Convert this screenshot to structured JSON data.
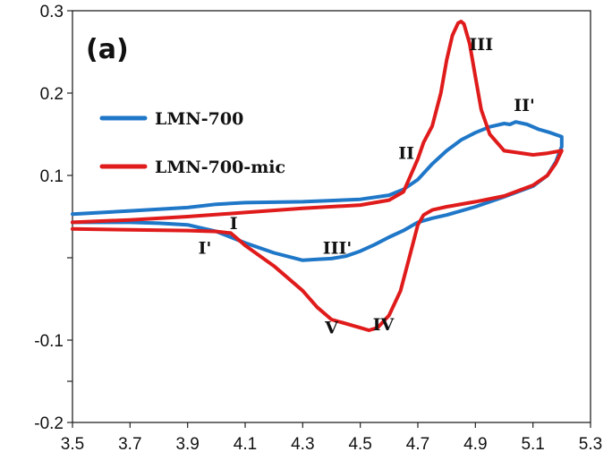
{
  "chart_data": {
    "type": "line",
    "panel_label": "(a)",
    "xlim": [
      3.5,
      5.3
    ],
    "ylim": [
      -0.2,
      0.3
    ],
    "x_ticks": [
      "3.5",
      "3.7",
      "3.9",
      "4.1",
      "4.3",
      "4.5",
      "4.7",
      "4.9",
      "5.1",
      "5.3"
    ],
    "y_ticks": [
      "-0.2",
      "",
      "-0.1",
      "",
      "0.1",
      "0.2",
      "0.3"
    ],
    "y_tick_values": [
      -0.2,
      -0.15,
      -0.1,
      0.0,
      0.1,
      0.2,
      0.3
    ],
    "grid": false,
    "legend_position": "upper-left",
    "colors": {
      "LMN-700": "#1f77c8",
      "LMN-700-mic": "#e01b1b"
    },
    "series": [
      {
        "name": "LMN-700",
        "color": "#1f77c8",
        "x": [
          3.5,
          3.7,
          3.9,
          4.0,
          4.1,
          4.3,
          4.5,
          4.6,
          4.65,
          4.7,
          4.75,
          4.8,
          4.85,
          4.9,
          4.95,
          5.0,
          5.02,
          5.04,
          5.08,
          5.12,
          5.16,
          5.2,
          5.2,
          5.18,
          5.15,
          5.1,
          5.0,
          4.9,
          4.8,
          4.75,
          4.7,
          4.65,
          4.6,
          4.55,
          4.5,
          4.45,
          4.4,
          4.35,
          4.3,
          4.2,
          4.1,
          4.0,
          3.95,
          3.9,
          3.8,
          3.7,
          3.6,
          3.5
        ],
        "y": [
          0.053,
          0.057,
          0.061,
          0.065,
          0.067,
          0.068,
          0.071,
          0.076,
          0.083,
          0.095,
          0.114,
          0.13,
          0.143,
          0.152,
          0.159,
          0.163,
          0.162,
          0.165,
          0.162,
          0.156,
          0.152,
          0.147,
          0.135,
          0.117,
          0.1,
          0.087,
          0.074,
          0.062,
          0.052,
          0.048,
          0.043,
          0.033,
          0.025,
          0.016,
          0.008,
          0.002,
          -0.001,
          -0.002,
          -0.003,
          0.006,
          0.018,
          0.032,
          0.036,
          0.04,
          0.042,
          0.043,
          0.043,
          0.043
        ]
      },
      {
        "name": "LMN-700-mic",
        "color": "#e01b1b",
        "x": [
          3.5,
          3.7,
          3.9,
          4.1,
          4.3,
          4.5,
          4.6,
          4.65,
          4.7,
          4.72,
          4.75,
          4.78,
          4.8,
          4.82,
          4.84,
          4.85,
          4.86,
          4.88,
          4.9,
          4.92,
          4.95,
          5.0,
          5.1,
          5.15,
          5.2,
          5.2,
          5.18,
          5.15,
          5.1,
          5.0,
          4.9,
          4.8,
          4.75,
          4.72,
          4.7,
          4.67,
          4.64,
          4.6,
          4.56,
          4.53,
          4.5,
          4.45,
          4.4,
          4.35,
          4.3,
          4.2,
          4.1,
          4.05,
          4.0,
          3.9,
          3.7,
          3.5
        ],
        "y": [
          0.043,
          0.046,
          0.05,
          0.055,
          0.06,
          0.064,
          0.07,
          0.08,
          0.12,
          0.14,
          0.16,
          0.2,
          0.24,
          0.27,
          0.285,
          0.287,
          0.284,
          0.26,
          0.22,
          0.18,
          0.15,
          0.13,
          0.125,
          0.127,
          0.13,
          0.13,
          0.115,
          0.1,
          0.088,
          0.075,
          0.068,
          0.062,
          0.058,
          0.052,
          0.04,
          0.0,
          -0.04,
          -0.07,
          -0.085,
          -0.088,
          -0.085,
          -0.08,
          -0.075,
          -0.06,
          -0.04,
          -0.01,
          0.015,
          0.03,
          0.032,
          0.033,
          0.034,
          0.035
        ]
      }
    ],
    "annotations": [
      {
        "text": "I",
        "x": 4.06,
        "y": 0.035
      },
      {
        "text": "I'",
        "x": 3.96,
        "y": 0.005
      },
      {
        "text": "II",
        "x": 4.66,
        "y": 0.12
      },
      {
        "text": "II'",
        "x": 5.07,
        "y": 0.178
      },
      {
        "text": "III",
        "x": 4.92,
        "y": 0.252
      },
      {
        "text": "III'",
        "x": 4.42,
        "y": 0.005
      },
      {
        "text": "IV",
        "x": 4.58,
        "y": -0.088
      },
      {
        "text": "V",
        "x": 4.4,
        "y": -0.092
      }
    ]
  }
}
